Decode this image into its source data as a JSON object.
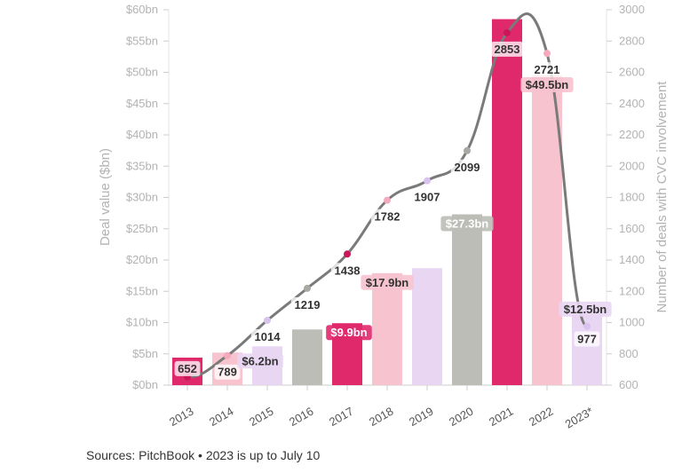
{
  "chart_data": {
    "type": "bar+line",
    "categories": [
      "2013",
      "2014",
      "2015",
      "2016",
      "2017",
      "2018",
      "2019",
      "2020",
      "2021",
      "2022",
      "2023*"
    ],
    "series": [
      {
        "axis": "left",
        "type": "bar",
        "values": [
          4.4,
          5.2,
          6.2,
          8.9,
          9.9,
          17.9,
          18.7,
          27.3,
          58.5,
          49.5,
          12.5
        ],
        "labels": [
          "",
          "",
          "$6.2bn",
          "",
          "$9.9bn",
          "$17.9bn",
          "",
          "$27.3bn",
          "",
          "$49.5bn",
          "$12.5bn"
        ]
      },
      {
        "axis": "right",
        "type": "line",
        "values": [
          652,
          789,
          1014,
          1219,
          1438,
          1782,
          1907,
          2099,
          2853,
          2721,
          977
        ]
      }
    ],
    "colors": [
      "#e0296b",
      "#f7c3cf",
      "#e8d6f3",
      "#bdbdb7"
    ],
    "line_color": "#7a7a7a",
    "ylabel": "Deal value ($bn)",
    "y2label": "Number of deals with CVC involvement",
    "ylim": [
      0,
      60
    ],
    "y2lim": [
      600,
      3000
    ],
    "yticks": [
      "$0bn",
      "$5bn",
      "$10bn",
      "$15bn",
      "$20bn",
      "$25bn",
      "$30bn",
      "$35bn",
      "$40bn",
      "$45bn",
      "$50bn",
      "$55bn",
      "$60bn"
    ],
    "y2ticks": [
      "600",
      "800",
      "1000",
      "1200",
      "1400",
      "1600",
      "1800",
      "2000",
      "2200",
      "2400",
      "2600",
      "2800",
      "3000"
    ]
  },
  "source": "Sources: PitchBook • 2023 is up to July 10"
}
